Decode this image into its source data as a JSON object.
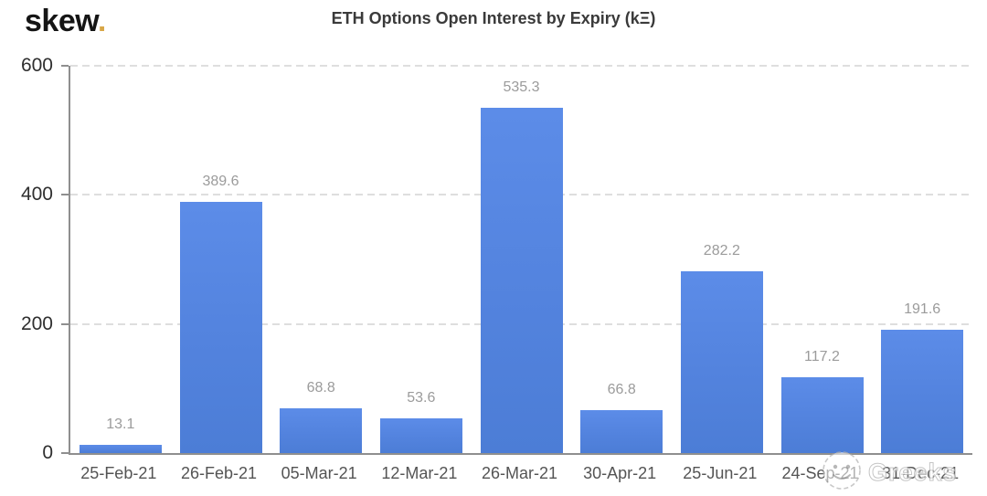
{
  "logo": {
    "text": "skew",
    "dot": ".",
    "dot_color": "#D8A748"
  },
  "chart_data": {
    "type": "bar",
    "title": "ETH Options Open Interest by Expiry (kΞ)",
    "categories": [
      "25-Feb-21",
      "26-Feb-21",
      "05-Mar-21",
      "12-Mar-21",
      "26-Mar-21",
      "30-Apr-21",
      "25-Jun-21",
      "24-Sep-21",
      "31-Dec-21"
    ],
    "values": [
      13.1,
      389.6,
      68.8,
      53.6,
      535.3,
      66.8,
      282.2,
      117.2,
      191.6
    ],
    "xlabel": "",
    "ylabel": "",
    "ylim": [
      0,
      600
    ],
    "yticks": [
      0,
      200,
      400,
      600
    ],
    "grid": "horizontal-dashed",
    "legend": "none",
    "bar_color": "#5585DE",
    "value_label_color": "#9B9B9B",
    "axis_color": "#8F8F8F"
  },
  "watermark": {
    "text": "Greeks",
    "icon": "smiley-face-icon"
  }
}
